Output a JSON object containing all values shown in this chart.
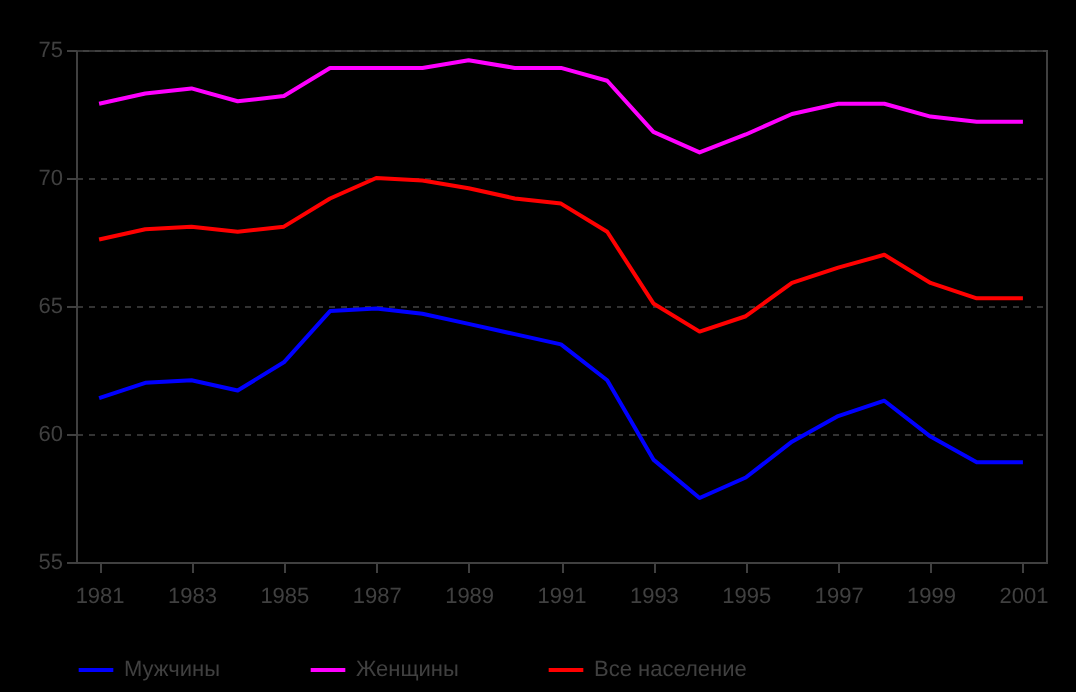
{
  "chart_data": {
    "type": "line",
    "x": [
      1981,
      1982,
      1983,
      1984,
      1985,
      1986,
      1987,
      1988,
      1989,
      1990,
      1991,
      1992,
      1993,
      1994,
      1995,
      1996,
      1997,
      1998,
      1999,
      2000,
      2001
    ],
    "series": [
      {
        "name": "Мужчины",
        "color": "#0000ff",
        "values": [
          61.4,
          62.0,
          62.1,
          61.7,
          62.8,
          64.8,
          64.9,
          64.7,
          64.3,
          63.9,
          63.5,
          62.1,
          59.0,
          57.5,
          58.3,
          59.7,
          60.7,
          61.3,
          59.9,
          58.9,
          58.9
        ]
      },
      {
        "name": "Женщины",
        "color": "#ff00ff",
        "values": [
          72.9,
          73.3,
          73.5,
          73.0,
          73.2,
          74.3,
          74.3,
          74.3,
          74.6,
          74.3,
          74.3,
          73.8,
          71.8,
          71.0,
          71.7,
          72.5,
          72.9,
          72.9,
          72.4,
          72.2,
          72.2
        ]
      },
      {
        "name": "Все население",
        "color": "#ff0000",
        "values": [
          67.6,
          68.0,
          68.1,
          67.9,
          68.1,
          69.2,
          70.0,
          69.9,
          69.6,
          69.2,
          69.0,
          67.9,
          65.1,
          64.0,
          64.6,
          65.9,
          66.5,
          67.0,
          65.9,
          65.3,
          65.3
        ]
      }
    ],
    "xlim": [
      1980.5,
      2001.5
    ],
    "xticks": [
      1981,
      1983,
      1985,
      1987,
      1989,
      1991,
      1993,
      1995,
      1997,
      1999,
      2001
    ],
    "ylim": [
      55,
      75
    ],
    "yticks": [
      55,
      60,
      65,
      70,
      75
    ],
    "grid": "y",
    "legend": "bottom"
  }
}
